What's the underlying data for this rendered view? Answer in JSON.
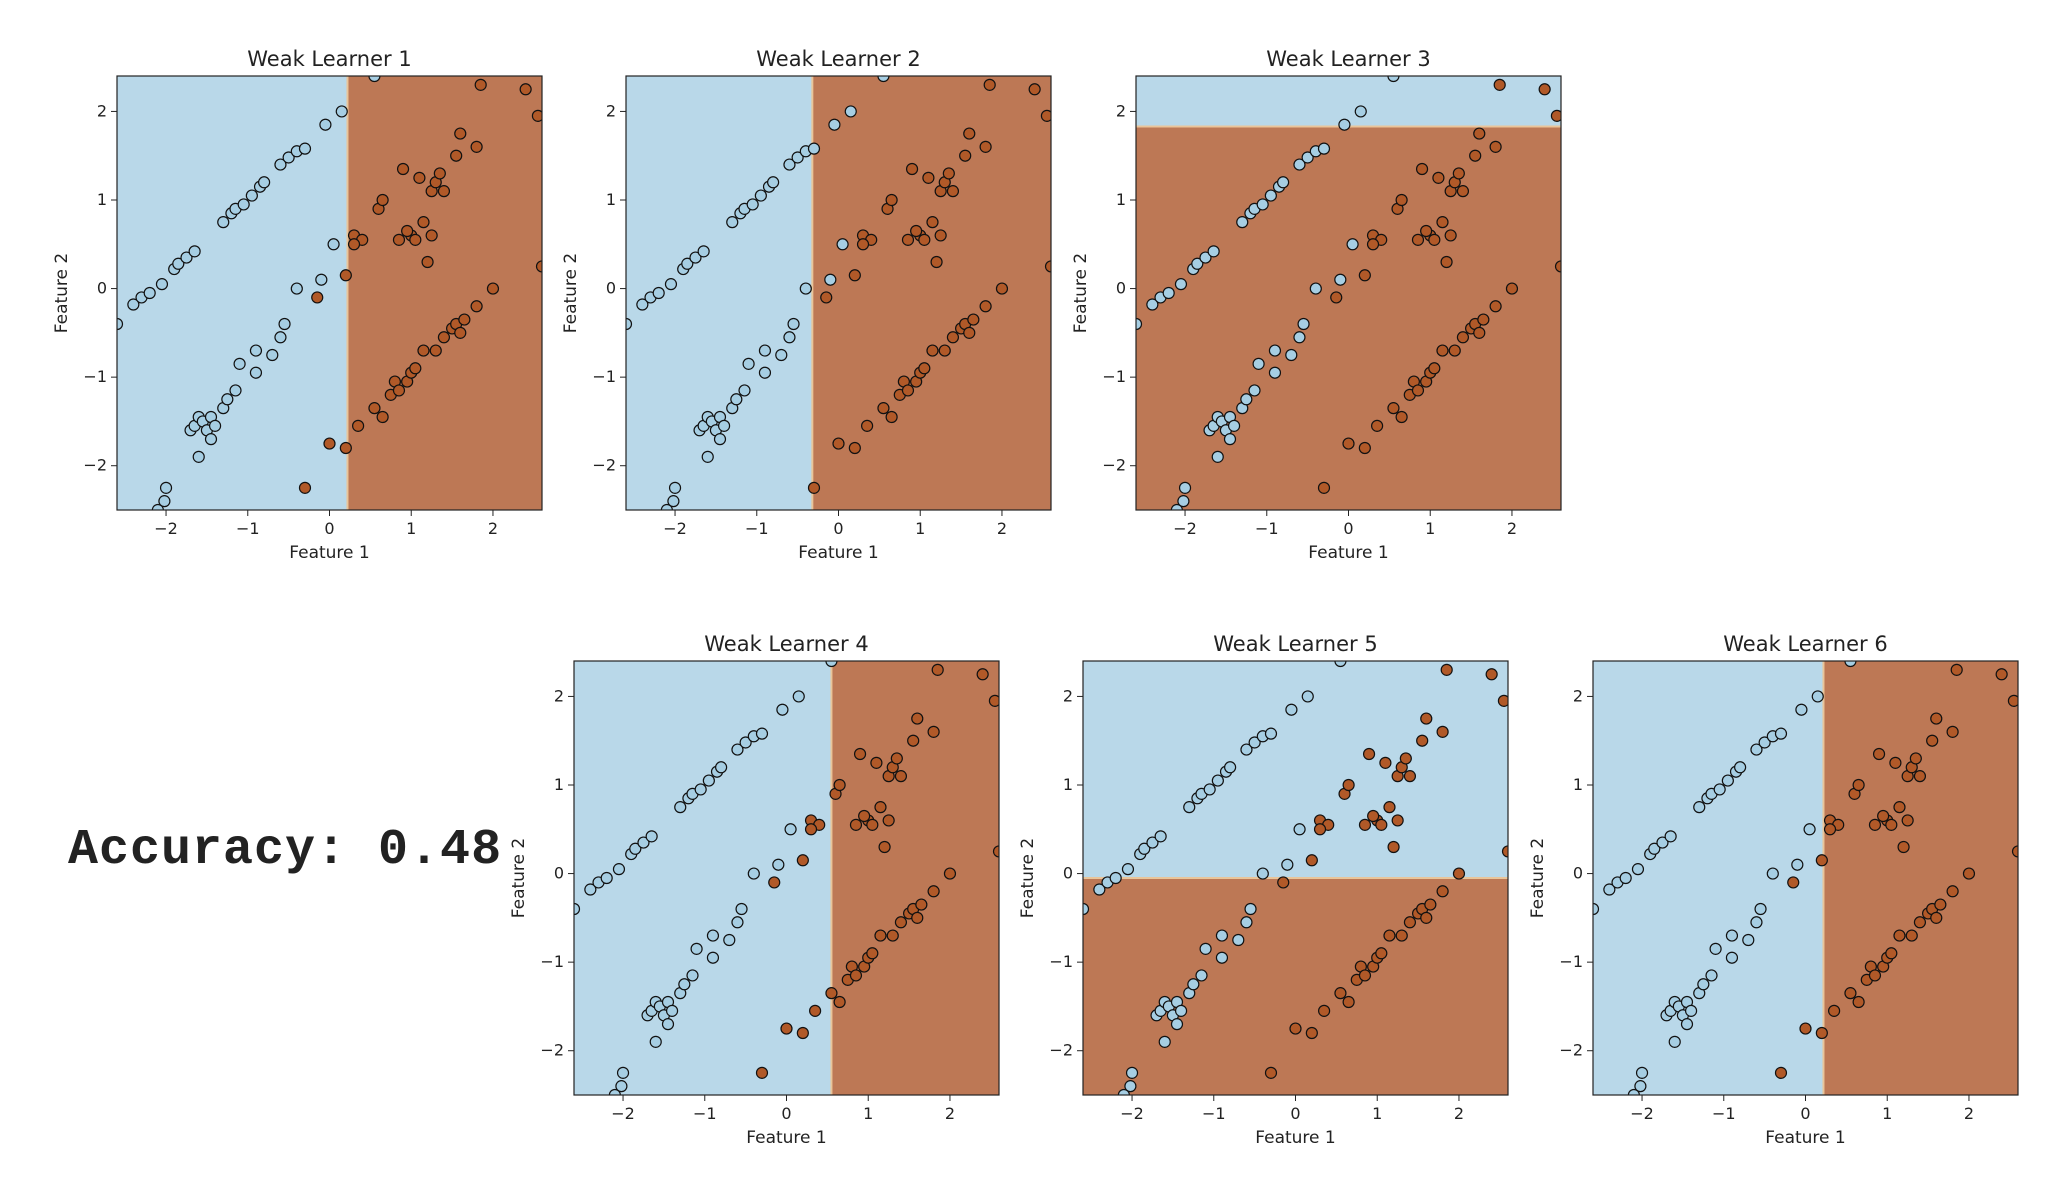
{
  "accuracy_label": "Accuracy: 0.48",
  "colors": {
    "class0": "#b9d8e9",
    "class1": "#bd7855",
    "point0": "#a6cee3",
    "point1": "#b15928",
    "edge": "#111111"
  },
  "chart_data": {
    "type": "scatter",
    "xlim": [
      -2.6,
      2.6
    ],
    "ylim": [
      -2.5,
      2.4
    ],
    "xticks": [
      "−2",
      "−1",
      "0",
      "1",
      "2"
    ],
    "yticks": [
      "−2",
      "−1",
      "0",
      "1",
      "2"
    ],
    "xlabel": "Feature 1",
    "ylabel": "Feature 2",
    "grid": false,
    "points": {
      "class0": [
        [
          -2.6,
          -0.4
        ],
        [
          -2.4,
          -0.18
        ],
        [
          -2.3,
          -0.1
        ],
        [
          -2.2,
          -0.05
        ],
        [
          -2.05,
          0.05
        ],
        [
          -1.9,
          0.22
        ],
        [
          -1.85,
          0.28
        ],
        [
          -1.75,
          0.35
        ],
        [
          -1.65,
          0.42
        ],
        [
          -1.3,
          0.75
        ],
        [
          -1.2,
          0.85
        ],
        [
          -1.15,
          0.9
        ],
        [
          -1.05,
          0.95
        ],
        [
          -0.95,
          1.05
        ],
        [
          -0.85,
          1.15
        ],
        [
          -0.8,
          1.2
        ],
        [
          -0.6,
          1.4
        ],
        [
          -0.5,
          1.48
        ],
        [
          -0.4,
          1.55
        ],
        [
          -0.3,
          1.58
        ],
        [
          -0.05,
          1.85
        ],
        [
          0.15,
          2.0
        ],
        [
          0.55,
          2.4
        ],
        [
          -2.0,
          -2.25
        ],
        [
          -2.02,
          -2.4
        ],
        [
          -2.1,
          -2.5
        ],
        [
          -1.7,
          -1.6
        ],
        [
          -1.65,
          -1.55
        ],
        [
          -1.6,
          -1.45
        ],
        [
          -1.55,
          -1.5
        ],
        [
          -1.5,
          -1.6
        ],
        [
          -1.45,
          -1.45
        ],
        [
          -1.45,
          -1.7
        ],
        [
          -1.4,
          -1.55
        ],
        [
          -1.6,
          -1.9
        ],
        [
          -1.3,
          -1.35
        ],
        [
          -1.25,
          -1.25
        ],
        [
          -1.15,
          -1.15
        ],
        [
          -1.1,
          -0.85
        ],
        [
          -0.9,
          -0.95
        ],
        [
          -0.9,
          -0.7
        ],
        [
          -0.7,
          -0.75
        ],
        [
          -0.6,
          -0.55
        ],
        [
          -0.55,
          -0.4
        ],
        [
          -0.4,
          0.0
        ],
        [
          -0.1,
          0.1
        ],
        [
          0.05,
          0.5
        ]
      ],
      "class1": [
        [
          -0.15,
          -0.1
        ],
        [
          0.0,
          -1.75
        ],
        [
          0.2,
          -1.8
        ],
        [
          -0.3,
          -2.25
        ],
        [
          0.3,
          0.6
        ],
        [
          0.4,
          0.55
        ],
        [
          0.6,
          0.9
        ],
        [
          0.65,
          1.0
        ],
        [
          0.85,
          0.55
        ],
        [
          1.0,
          0.6
        ],
        [
          1.05,
          0.55
        ],
        [
          0.95,
          0.65
        ],
        [
          0.9,
          1.35
        ],
        [
          1.1,
          1.25
        ],
        [
          1.25,
          1.1
        ],
        [
          1.3,
          1.2
        ],
        [
          1.35,
          1.3
        ],
        [
          1.4,
          1.1
        ],
        [
          1.15,
          0.75
        ],
        [
          1.25,
          0.6
        ],
        [
          0.2,
          0.15
        ],
        [
          1.55,
          1.5
        ],
        [
          1.6,
          1.75
        ],
        [
          1.8,
          1.6
        ],
        [
          1.85,
          2.3
        ],
        [
          2.4,
          2.25
        ],
        [
          2.55,
          1.95
        ],
        [
          2.6,
          0.25
        ],
        [
          0.35,
          -1.55
        ],
        [
          0.55,
          -1.35
        ],
        [
          0.65,
          -1.45
        ],
        [
          0.75,
          -1.2
        ],
        [
          0.8,
          -1.05
        ],
        [
          0.85,
          -1.15
        ],
        [
          0.95,
          -1.05
        ],
        [
          1.0,
          -0.95
        ],
        [
          1.05,
          -0.9
        ],
        [
          1.15,
          -0.7
        ],
        [
          1.3,
          -0.7
        ],
        [
          1.4,
          -0.55
        ],
        [
          1.5,
          -0.45
        ],
        [
          1.55,
          -0.4
        ],
        [
          1.65,
          -0.35
        ],
        [
          1.6,
          -0.5
        ],
        [
          1.8,
          -0.2
        ],
        [
          2.0,
          0.0
        ],
        [
          1.2,
          0.3
        ],
        [
          0.3,
          0.5
        ]
      ]
    },
    "panels": [
      {
        "title": "Weak Learner 1",
        "split": {
          "axis": "x",
          "value": 0.22,
          "left": "class0",
          "right": "class1"
        }
      },
      {
        "title": "Weak Learner 2",
        "split": {
          "axis": "x",
          "value": -0.32,
          "left": "class0",
          "right": "class1"
        }
      },
      {
        "title": "Weak Learner 3",
        "split": {
          "axis": "y",
          "value": 1.83,
          "above": "class0",
          "below": "class1"
        }
      },
      {
        "title": "Weak Learner 4",
        "split": {
          "axis": "x",
          "value": 0.55,
          "left": "class0",
          "right": "class1"
        }
      },
      {
        "title": "Weak Learner 5",
        "split": {
          "axis": "y",
          "value": -0.05,
          "above": "class0",
          "below": "class1"
        }
      },
      {
        "title": "Weak Learner 6",
        "split": {
          "axis": "x",
          "value": 0.22,
          "left": "class0",
          "right": "class1"
        }
      }
    ]
  }
}
